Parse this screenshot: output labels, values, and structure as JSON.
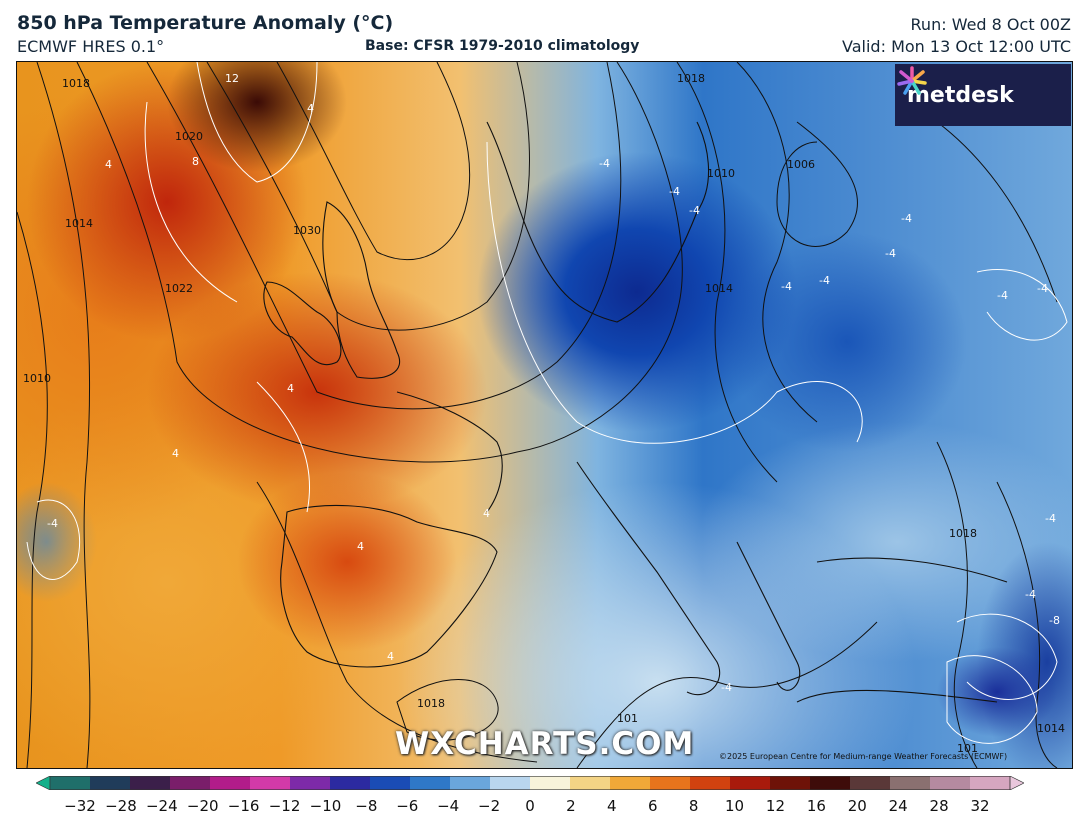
{
  "header": {
    "title": "850 hPa Temperature Anomaly (°C)",
    "model": "ECMWF HRES 0.1°",
    "base": "Base: CFSR 1979-2010 climatology",
    "run": "Run: Wed 8 Oct 00Z",
    "valid": "Valid: Mon 13 Oct 12:00 UTC"
  },
  "branding": {
    "logo_text": "metdesk",
    "watermark": "WXCHARTS.COM",
    "copyright": "©2025 European Centre for Medium-range Weather Forecasts (ECMWF)"
  },
  "map": {
    "isobar_labels": [
      "1018",
      "1020",
      "1014",
      "1010",
      "1022",
      "1030",
      "1018",
      "1010",
      "1006",
      "1014",
      "1018",
      "1018",
      "1014",
      "101",
      "101"
    ],
    "anomaly_labels": [
      "12",
      "8",
      "4",
      "4",
      "4",
      "4",
      "4",
      "4",
      "4",
      "-4",
      "-4",
      "-4",
      "-4",
      "-4",
      "-4",
      "-4",
      "-4",
      "-4",
      "-4",
      "-4",
      "-4",
      "-4",
      "-8"
    ]
  },
  "legend": {
    "tick_labels": [
      "−32",
      "−28",
      "−24",
      "−20",
      "−16",
      "−12",
      "−10",
      "−8",
      "−6",
      "−4",
      "−2",
      "0",
      "2",
      "4",
      "6",
      "8",
      "10",
      "12",
      "16",
      "20",
      "24",
      "28",
      "32"
    ],
    "colors": [
      "#14b08a",
      "#1f6f6a",
      "#203c5a",
      "#3b1f4a",
      "#7a1e6a",
      "#b21c8a",
      "#d33aa8",
      "#7d2aa8",
      "#2c2aa0",
      "#1a4cb5",
      "#2f78c8",
      "#6aa6dc",
      "#b9d6ee",
      "#f7f3da",
      "#f4d485",
      "#f0a838",
      "#e7741c",
      "#d1420f",
      "#a81a0c",
      "#6e1208",
      "#3e0c0a",
      "#5a3838",
      "#8a7070",
      "#b58aa0",
      "#d6a6c0",
      "#e9c7dc"
    ]
  }
}
